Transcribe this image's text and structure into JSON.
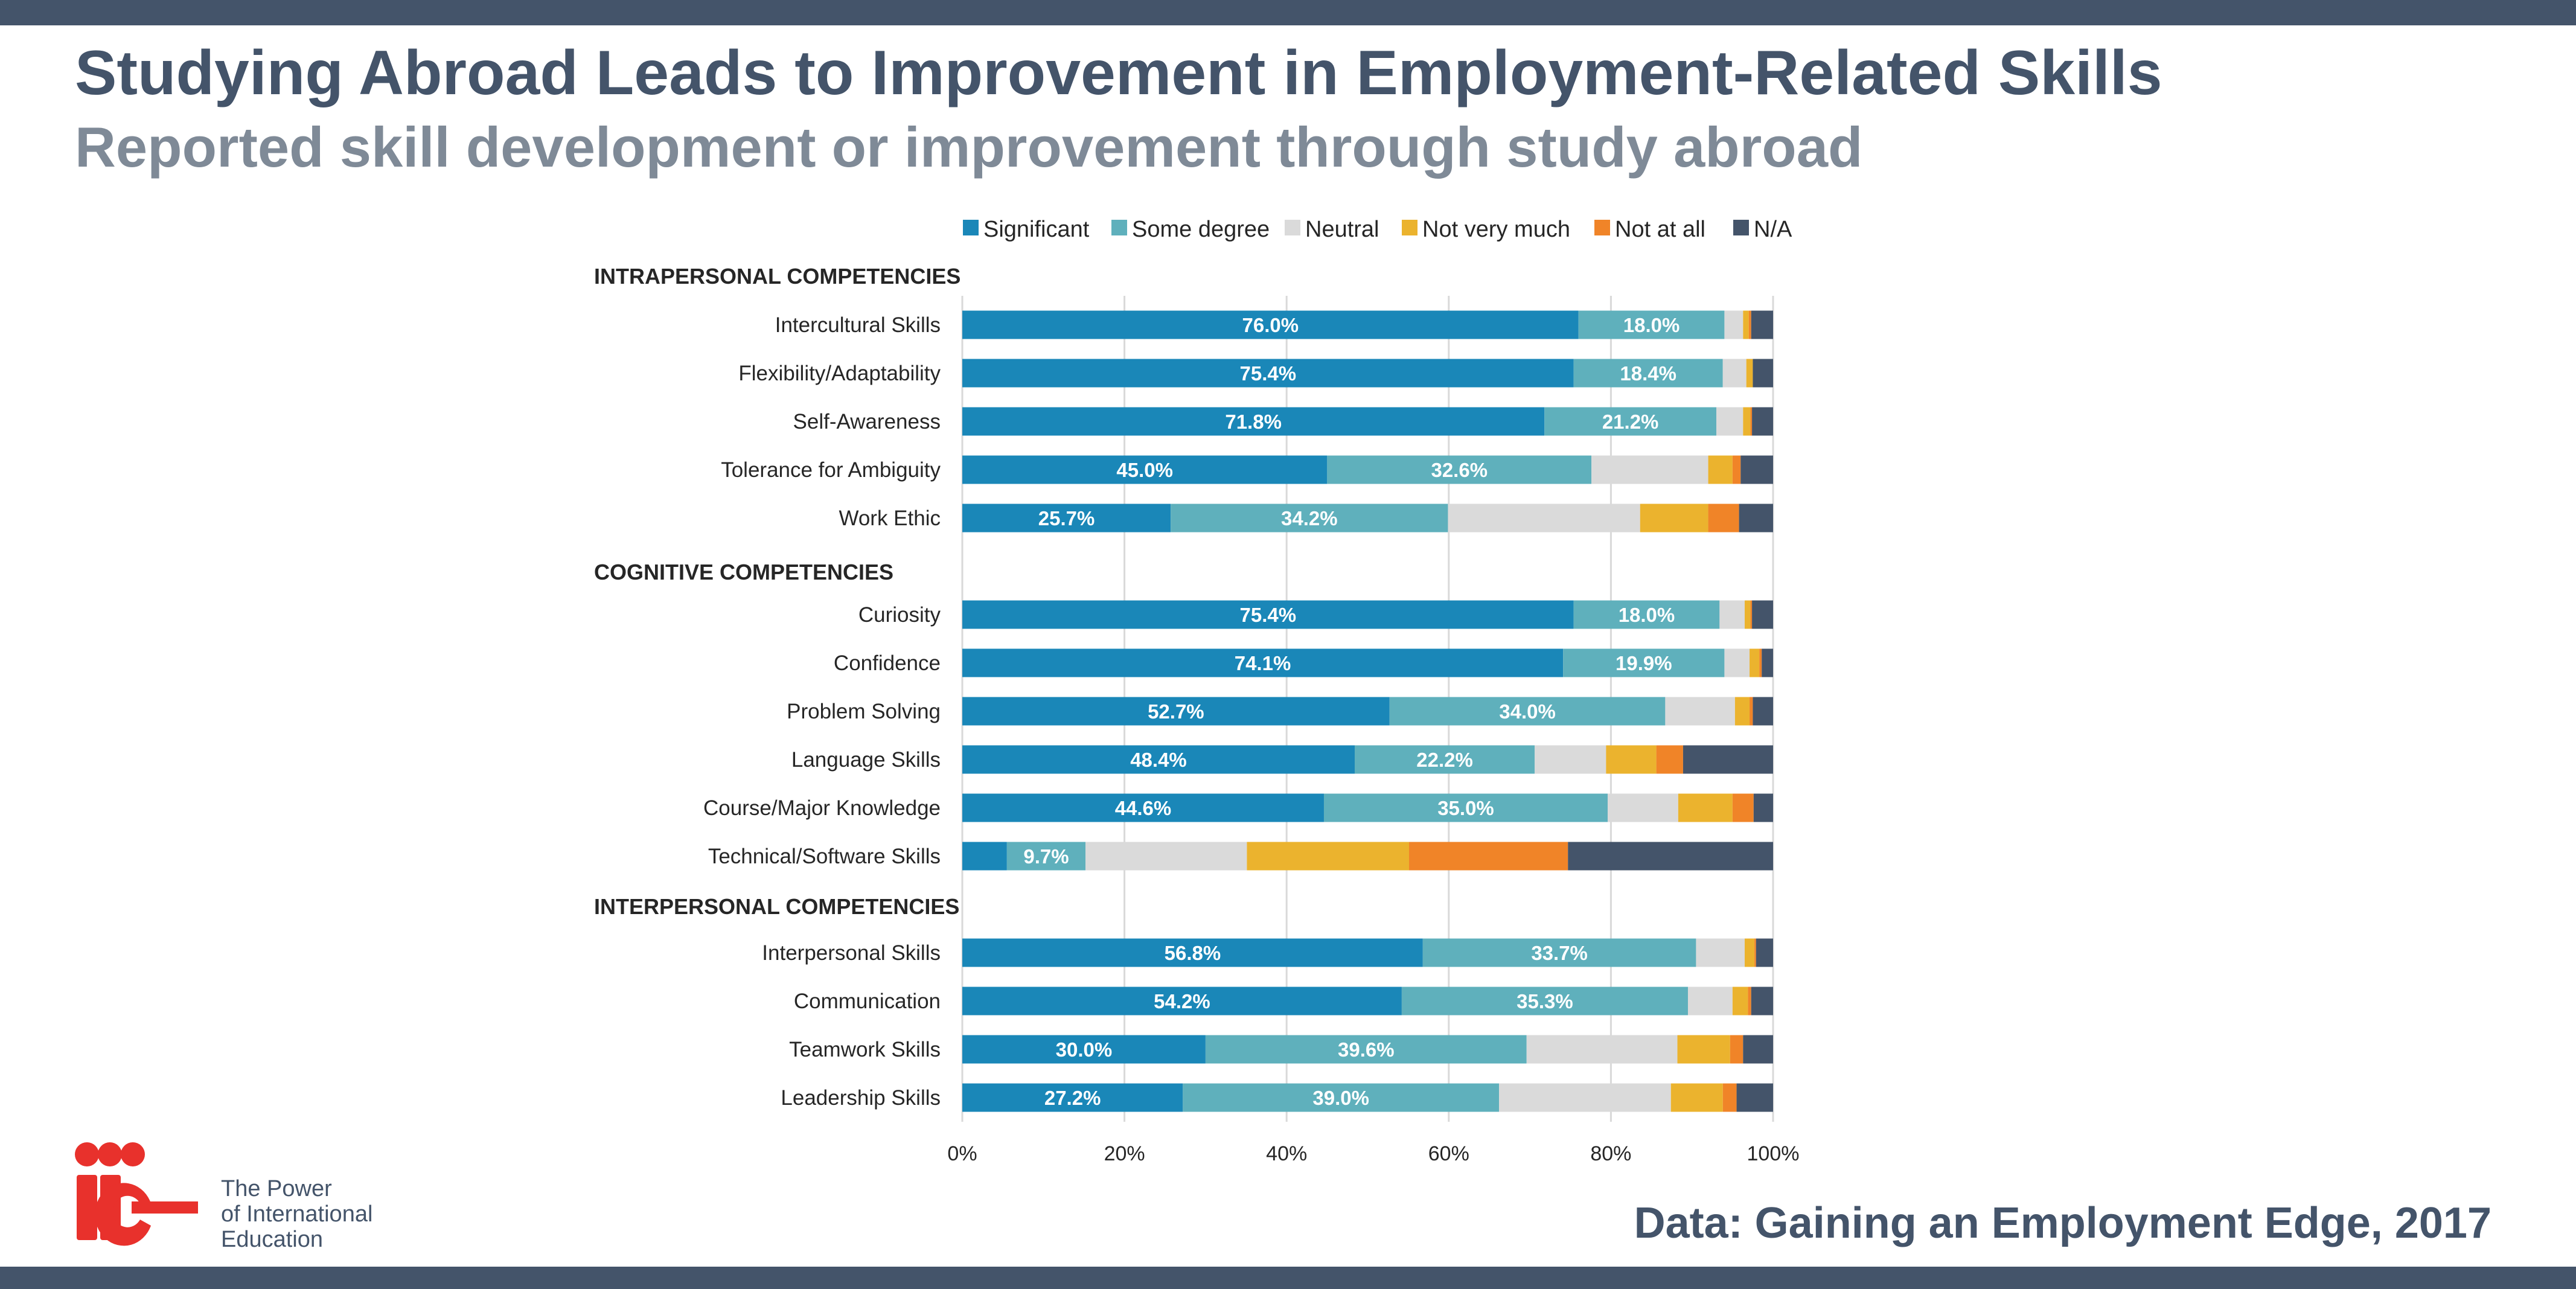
{
  "title": "Studying Abroad Leads to Improvement in Employment-Related Skills",
  "subtitle": "Reported skill development or improvement through study abroad",
  "source": "Data: Gaining an Employment Edge, 2017",
  "logo": {
    "mark": "iie",
    "lines": [
      "The Power",
      "of International",
      "Education"
    ]
  },
  "colors": {
    "Significant": "#1a87b8",
    "Some degree": "#5fb0bc",
    "Neutral": "#dadada",
    "Not very much": "#ebb32e",
    "Not at all": "#f08428",
    "N/A": "#44546a",
    "text": "#262626",
    "grid": "#d9d9d9",
    "brand_red": "#e8312c"
  },
  "chart_data": {
    "type": "bar",
    "orientation": "horizontal",
    "stacked": "percent",
    "legend": [
      "Significant",
      "Some degree",
      "Neutral",
      "Not very much",
      "Not at all",
      "N/A"
    ],
    "legend_position": "top",
    "xlim": [
      0,
      100
    ],
    "ticks": [
      "0%",
      "20%",
      "40%",
      "60%",
      "80%",
      "100%"
    ],
    "grid": true,
    "groups": [
      {
        "name": "INTRAPERSONAL COMPETENCIES",
        "rows": [
          {
            "label": "Intercultural Skills",
            "values": [
              76.0,
              18.0,
              2.3,
              0.7,
              0.3,
              2.7
            ],
            "labels": [
              "76.0%",
              "18.0%"
            ]
          },
          {
            "label": "Flexibility/Adaptability",
            "values": [
              75.4,
              18.4,
              2.9,
              0.8,
              0.0,
              2.5
            ],
            "labels": [
              "75.4%",
              "18.4%"
            ]
          },
          {
            "label": "Self-Awareness",
            "values": [
              71.8,
              21.2,
              3.3,
              0.9,
              0.2,
              2.6
            ],
            "labels": [
              "71.8%",
              "21.2%"
            ]
          },
          {
            "label": "Tolerance for Ambiguity",
            "values": [
              45.0,
              32.6,
              14.4,
              3.0,
              1.0,
              4.0
            ],
            "labels": [
              "45.0%",
              "32.6%"
            ]
          },
          {
            "label": "Work Ethic",
            "values": [
              25.7,
              34.2,
              23.7,
              8.4,
              3.8,
              4.2
            ],
            "labels": [
              "25.7%",
              "34.2%"
            ]
          }
        ]
      },
      {
        "name": "COGNITIVE  COMPETENCIES",
        "rows": [
          {
            "label": "Curiosity",
            "values": [
              75.4,
              18.0,
              3.1,
              0.7,
              0.2,
              2.6
            ],
            "labels": [
              "75.4%",
              "18.0%"
            ]
          },
          {
            "label": "Confidence",
            "values": [
              74.1,
              19.9,
              3.1,
              1.2,
              0.3,
              1.4
            ],
            "labels": [
              "74.1%",
              "19.9%"
            ]
          },
          {
            "label": "Problem Solving",
            "values": [
              52.7,
              34.0,
              8.6,
              1.8,
              0.4,
              2.5
            ],
            "labels": [
              "52.7%",
              "34.0%"
            ]
          },
          {
            "label": "Language Skills",
            "values": [
              48.4,
              22.2,
              8.8,
              6.2,
              3.3,
              11.1
            ],
            "labels": [
              "48.4%",
              "22.2%"
            ]
          },
          {
            "label": "Course/Major Knowledge",
            "values": [
              44.6,
              35.0,
              8.7,
              6.7,
              2.6,
              2.4
            ],
            "labels": [
              "44.6%",
              "35.0%"
            ]
          },
          {
            "label": "Technical/Software Skills",
            "values": [
              5.5,
              9.7,
              19.9,
              20.0,
              19.6,
              25.3
            ],
            "labels": [
              "",
              "9.7%"
            ]
          }
        ]
      },
      {
        "name": "INTERPERSONAL COMPETENCIES",
        "rows": [
          {
            "label": "Interpersonal Skills",
            "values": [
              56.8,
              33.7,
              6.0,
              1.2,
              0.2,
              2.1
            ],
            "labels": [
              "56.8%",
              "33.7%"
            ]
          },
          {
            "label": "Communication",
            "values": [
              54.2,
              35.3,
              5.5,
              1.9,
              0.4,
              2.7
            ],
            "labels": [
              "54.2%",
              "35.3%"
            ]
          },
          {
            "label": "Teamwork Skills",
            "values": [
              30.0,
              39.6,
              18.6,
              6.5,
              1.6,
              3.7
            ],
            "labels": [
              "30.0%",
              "39.6%"
            ]
          },
          {
            "label": "Leadership Skills",
            "values": [
              27.2,
              39.0,
              21.2,
              6.4,
              1.7,
              4.5
            ],
            "labels": [
              "27.2%",
              "39.0%"
            ]
          }
        ]
      }
    ]
  }
}
